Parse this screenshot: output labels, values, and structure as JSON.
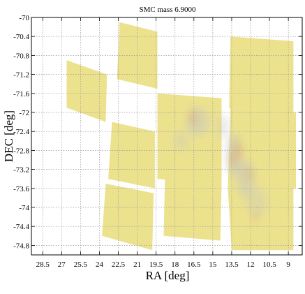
{
  "chart_data": {
    "type": "heatmap",
    "title": "SMC mass  6.9000",
    "xlabel": "RA [deg]",
    "ylabel": "DEC [deg]",
    "xlim": [
      29.4,
      7.9
    ],
    "ylim": [
      -75.0,
      -70.0
    ],
    "x_reversed": true,
    "grid": true,
    "xticks": [
      28.5,
      27,
      25.5,
      24,
      22.5,
      21,
      19.5,
      18,
      16.5,
      15,
      13.5,
      12,
      10.5,
      9
    ],
    "xtick_labels": [
      "28.5",
      "27",
      "25.5",
      "24",
      "22.5",
      "21",
      "19.5",
      "18",
      "16.5",
      "15",
      "13.5",
      "12",
      "10.5",
      "9"
    ],
    "yticks": [
      -70,
      -70.4,
      -70.8,
      -71.2,
      -71.6,
      -72,
      -72.4,
      -72.8,
      -73.2,
      -73.6,
      -74,
      -74.4,
      -74.8
    ],
    "ytick_labels": [
      "-70",
      "-70.4",
      "-70.8",
      "-71.2",
      "-71.6",
      "-72",
      "-72.4",
      "-72.8",
      "-73.2",
      "-73.6",
      "-74",
      "-74.4",
      "-74.8"
    ],
    "colors": {
      "coverage": "#ece28e",
      "density_low": "#c7c6c0",
      "density_high": "#e0a060",
      "grid": "#9a9a9a"
    },
    "coverage_tiles": [
      [
        [
          26.6,
          -70.9
        ],
        [
          23.4,
          -71.2
        ],
        [
          23.5,
          -72.2
        ],
        [
          26.6,
          -71.9
        ]
      ],
      [
        [
          22.4,
          -70.1
        ],
        [
          19.4,
          -70.3
        ],
        [
          19.4,
          -71.5
        ],
        [
          22.6,
          -71.3
        ]
      ],
      [
        [
          23.0,
          -72.2
        ],
        [
          19.6,
          -72.4
        ],
        [
          19.6,
          -73.6
        ],
        [
          23.3,
          -73.4
        ]
      ],
      [
        [
          23.5,
          -73.5
        ],
        [
          19.7,
          -73.7
        ],
        [
          19.8,
          -74.9
        ],
        [
          23.8,
          -74.6
        ]
      ],
      [
        [
          19.4,
          -71.6
        ],
        [
          14.3,
          -71.7
        ],
        [
          14.3,
          -73.5
        ],
        [
          19.4,
          -73.4
        ]
      ],
      [
        [
          18.8,
          -73.4
        ],
        [
          14.3,
          -73.5
        ],
        [
          14.4,
          -74.7
        ],
        [
          18.9,
          -74.6
        ]
      ],
      [
        [
          13.6,
          -70.4
        ],
        [
          8.6,
          -70.5
        ],
        [
          8.6,
          -72.0
        ],
        [
          13.7,
          -71.9
        ]
      ],
      [
        [
          13.6,
          -71.9
        ],
        [
          8.4,
          -72.0
        ],
        [
          8.4,
          -73.6
        ],
        [
          13.8,
          -73.6
        ]
      ],
      [
        [
          13.8,
          -73.6
        ],
        [
          8.6,
          -73.6
        ],
        [
          8.6,
          -74.9
        ],
        [
          13.5,
          -74.9
        ]
      ]
    ],
    "density_blobs": [
      [
        16.2,
        -72.2,
        1.8,
        0.6,
        0.55
      ],
      [
        13.3,
        -72.9,
        1.2,
        0.9,
        0.6
      ],
      [
        12.4,
        -73.4,
        1.5,
        0.8,
        0.5
      ],
      [
        11.5,
        -73.9,
        1.6,
        0.6,
        0.35
      ],
      [
        17.5,
        -72.6,
        1.2,
        0.4,
        0.35
      ],
      [
        14.2,
        -72.3,
        0.9,
        0.5,
        0.4
      ]
    ],
    "hotspots": [
      [
        16.6,
        -72.1,
        0.35
      ],
      [
        13.0,
        -72.8,
        0.4
      ],
      [
        13.4,
        -73.0,
        0.3
      ],
      [
        12.1,
        -73.3,
        0.3
      ],
      [
        11.6,
        -74.2,
        0.25
      ]
    ]
  }
}
